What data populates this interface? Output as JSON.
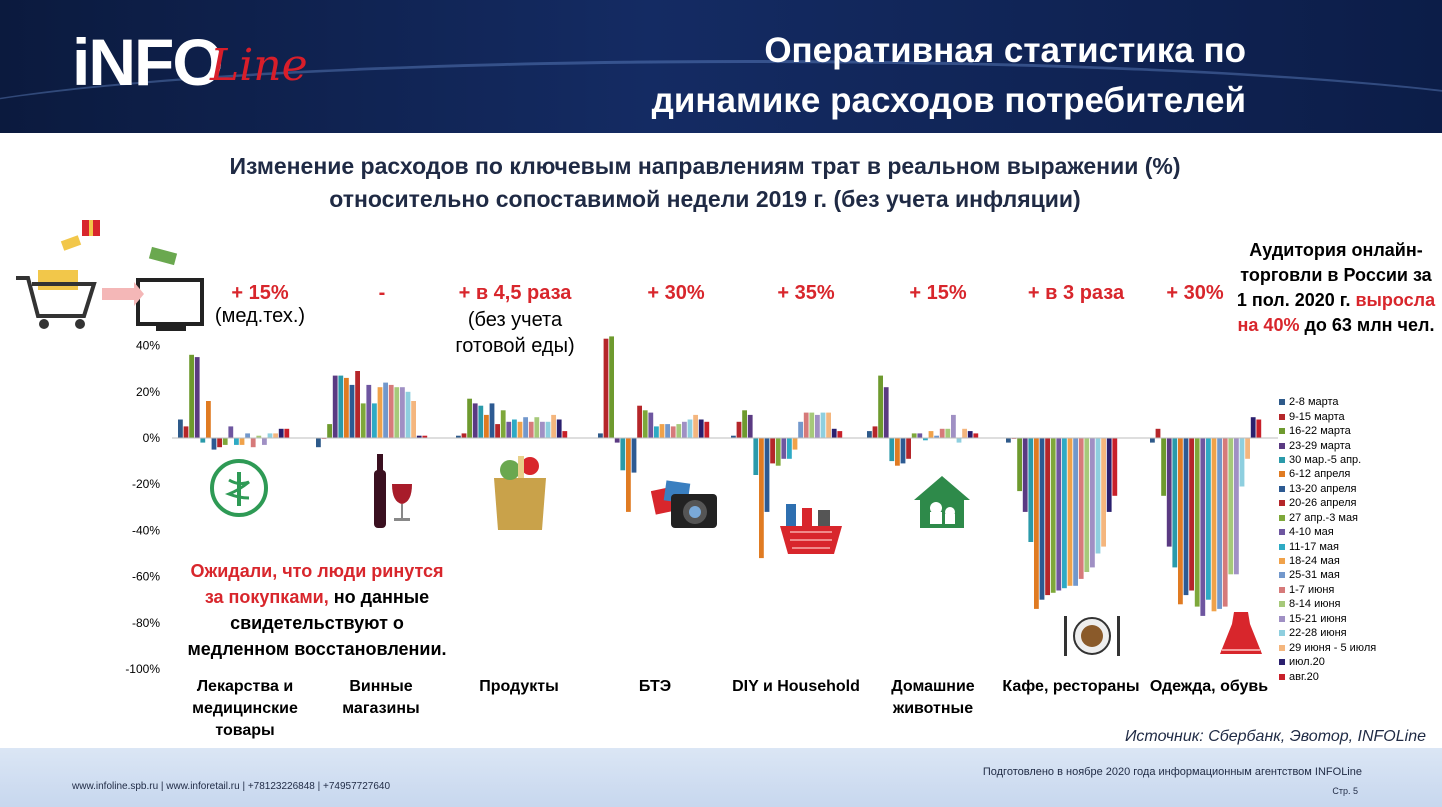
{
  "header": {
    "logo_main": "iNFO",
    "logo_script": "Line",
    "title_line1": "Оперативная статистика по",
    "title_line2": "динамике расходов потребителей"
  },
  "chart_title": {
    "line1": "Изменение расходов по ключевым направлениям трат в реальном выражении (%)",
    "line2": "относительно сопоставимой недели 2019 г. (без учета инфляции)"
  },
  "annotations": [
    {
      "value": "+ 15%",
      "note": "(мед.тех.)"
    },
    {
      "value": "-",
      "note": ""
    },
    {
      "value": "+ в 4,5 раза",
      "note": "(без учета готовой еды)"
    },
    {
      "value": "+ 30%",
      "note": ""
    },
    {
      "value": "+ 35%",
      "note": ""
    },
    {
      "value": "+ 15%",
      "note": ""
    },
    {
      "value": "+ в 3 раза",
      "note": ""
    },
    {
      "value": "+ 30%",
      "note": ""
    }
  ],
  "side_note": {
    "part1": "Аудитория онлайн-торговли в России за 1 пол. 2020 г.",
    "highlight": "выросла на 40%",
    "part2": "до 63 млн чел."
  },
  "callout": {
    "red": "Ожидали, что люди ринутся за покупками,",
    "rest": "но данные свидетельствуют о медленном восстановлении."
  },
  "source": "Источник: Сбербанк, Эвотор, INFOLine",
  "footer": {
    "links": "www.infoline.spb.ru | www.inforetail.ru | +78123226848 | +74957727640",
    "prepared": "Подготовлено в ноябре 2020 года информационным агентством INFOLine",
    "page": "Стр. 5"
  },
  "icons": [
    "shopping-cart-icon",
    "monitor-icon",
    "pharmacy-icon",
    "wine-icon",
    "grocery-bag-icon",
    "camera-icon",
    "cleaning-basket-icon",
    "pet-house-icon",
    "dining-plate-icon",
    "dress-icon"
  ],
  "chart_data": {
    "type": "bar",
    "ylim": [
      -100,
      45
    ],
    "yticks": [
      40,
      20,
      0,
      -20,
      -40,
      -60,
      -80,
      -100
    ],
    "ytick_labels": [
      "40%",
      "20%",
      "0%",
      "-20%",
      "-40%",
      "-60%",
      "-80%",
      "-100%"
    ],
    "categories": [
      "Лекарства и медицинские товары",
      "Винные магазины",
      "Продукты",
      "БТЭ",
      "DIY и Household",
      "Домашние животные",
      "Кафе, рестораны",
      "Одежда, обувь"
    ],
    "series": [
      {
        "name": "2-8 марта",
        "color": "#2e5a8a",
        "values": [
          8,
          -4,
          1,
          2,
          1,
          3,
          -2,
          -2
        ]
      },
      {
        "name": "9-15 марта",
        "color": "#b5262a",
        "values": [
          5,
          0,
          2,
          43,
          7,
          5,
          0,
          4
        ]
      },
      {
        "name": "16-22 марта",
        "color": "#6e9a2e",
        "values": [
          36,
          6,
          17,
          44,
          12,
          27,
          -23,
          -25
        ]
      },
      {
        "name": "23-29 марта",
        "color": "#5a3a82",
        "values": [
          35,
          27,
          15,
          -2,
          10,
          22,
          -32,
          -47
        ]
      },
      {
        "name": "30 мар.-5 апр.",
        "color": "#2a9aaa",
        "values": [
          -2,
          27,
          14,
          -14,
          -16,
          -10,
          -45,
          -56
        ]
      },
      {
        "name": "6-12 апреля",
        "color": "#e07b22",
        "values": [
          16,
          26,
          10,
          -32,
          -52,
          -12,
          -74,
          -72
        ]
      },
      {
        "name": "13-20 апреля",
        "color": "#2d5a92",
        "values": [
          -5,
          23,
          15,
          -15,
          -32,
          -11,
          -70,
          -68
        ]
      },
      {
        "name": "20-26 апреля",
        "color": "#b5262a",
        "values": [
          -4,
          29,
          6,
          14,
          -11,
          -9,
          -68,
          -66
        ]
      },
      {
        "name": "27 апр.-3 мая",
        "color": "#7ea83a",
        "values": [
          -3,
          15,
          12,
          12,
          -12,
          2,
          -67,
          -73
        ]
      },
      {
        "name": "4-10 мая",
        "color": "#6e56a0",
        "values": [
          5,
          23,
          7,
          11,
          -9,
          2,
          -66,
          -77
        ]
      },
      {
        "name": "11-17 мая",
        "color": "#2eaac4",
        "values": [
          -3,
          15,
          8,
          5,
          -9,
          -1,
          -65,
          -70
        ]
      },
      {
        "name": "18-24 мая",
        "color": "#f0a24a",
        "values": [
          -3,
          22,
          7,
          6,
          -5,
          3,
          -64,
          -75
        ]
      },
      {
        "name": "25-31 мая",
        "color": "#7298cc",
        "values": [
          2,
          24,
          9,
          6,
          7,
          1,
          -64,
          -74
        ]
      },
      {
        "name": "1-7 июня",
        "color": "#d67a7a",
        "values": [
          -4,
          23,
          7,
          5,
          11,
          4,
          -61,
          -73
        ]
      },
      {
        "name": "8-14 июня",
        "color": "#a6c97a",
        "values": [
          1,
          22,
          9,
          6,
          11,
          4,
          -58,
          -59
        ]
      },
      {
        "name": "15-21 июня",
        "color": "#a090c4",
        "values": [
          -3,
          22,
          7,
          7,
          10,
          10,
          -56,
          -59
        ]
      },
      {
        "name": "22-28 июня",
        "color": "#8ecfdf",
        "values": [
          2,
          20,
          7,
          8,
          11,
          -2,
          -50,
          -21
        ]
      },
      {
        "name": "29 июня - 5 июля",
        "color": "#f4b67e",
        "values": [
          2,
          16,
          10,
          10,
          11,
          4,
          -47,
          -9
        ]
      },
      {
        "name": "июл.20",
        "color": "#2a1f6e",
        "values": [
          4,
          1,
          8,
          8,
          4,
          3,
          -32,
          9
        ]
      },
      {
        "name": "авг.20",
        "color": "#c8202a",
        "values": [
          4,
          1,
          3,
          7,
          3,
          2,
          -25,
          8
        ]
      }
    ]
  }
}
